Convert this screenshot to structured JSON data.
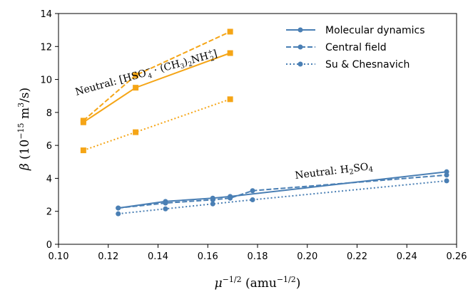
{
  "chart_data": {
    "type": "line",
    "xlabel": "μ^-1/2 (amu^-1/2)",
    "xlabel_parts": {
      "mu": "μ",
      "mu_exp": "−1/2",
      "unit_open": " (amu",
      "unit_exp": "−1/2",
      "unit_close": ")"
    },
    "ylabel": "β (10^-15 m³/s)",
    "ylabel_parts": {
      "beta": "β",
      "open": " (10",
      "exp": "−15",
      "rest": " m",
      "cube": "3",
      "close": "/s)"
    },
    "xlim": [
      0.1,
      0.26
    ],
    "ylim": [
      0,
      14
    ],
    "xticks": [
      "0.10",
      "0.12",
      "0.14",
      "0.16",
      "0.18",
      "0.20",
      "0.22",
      "0.24",
      "0.26"
    ],
    "yticks": [
      "0",
      "2",
      "4",
      "6",
      "8",
      "10",
      "12",
      "14"
    ],
    "grid": false,
    "legend_position": "top-right",
    "legend": [
      {
        "name": "Molecular dynamics",
        "dash": "solid"
      },
      {
        "name": "Central field",
        "dash": "dashed"
      },
      {
        "name": "Su & Chesnavich",
        "dash": "dotted"
      }
    ],
    "colors": {
      "h2so4": "#4a7fb4",
      "hso4": "#f5a516"
    },
    "annotations": {
      "h2so4": {
        "prefix": "Neutral: H",
        "sub1": "2",
        "mid": "SO",
        "sub2": "4"
      },
      "hso4": {
        "prefix": "Neutral: [HSO",
        "hso4_sub": "4",
        "hso4_sup": "−",
        "mid1": " · (CH",
        "ch3_sub": "3",
        "mid2": ")",
        "paren_sub": "2",
        "nh": "NH",
        "nh_sub": "2",
        "nh_sup": "+",
        "close": "]"
      }
    },
    "series": [
      {
        "group": "h2so4",
        "method": "Molecular dynamics",
        "style": "solid",
        "marker": "circle",
        "x": [
          0.124,
          0.143,
          0.162,
          0.169,
          0.256
        ],
        "y": [
          2.2,
          2.6,
          2.8,
          2.9,
          4.4
        ]
      },
      {
        "group": "h2so4",
        "method": "Central field",
        "style": "dashed",
        "marker": "circle",
        "x": [
          0.124,
          0.143,
          0.162,
          0.169,
          0.178,
          0.256
        ],
        "y": [
          2.2,
          2.5,
          2.7,
          2.8,
          3.25,
          4.2
        ]
      },
      {
        "group": "h2so4",
        "method": "Su & Chesnavich",
        "style": "dotted",
        "marker": "circle",
        "x": [
          0.124,
          0.143,
          0.162,
          0.178,
          0.256
        ],
        "y": [
          1.85,
          2.15,
          2.45,
          2.7,
          3.85
        ]
      },
      {
        "group": "hso4",
        "method": "Molecular dynamics",
        "style": "solid",
        "marker": "square",
        "x": [
          0.11,
          0.131,
          0.169
        ],
        "y": [
          7.4,
          9.5,
          11.6
        ]
      },
      {
        "group": "hso4",
        "method": "Central field",
        "style": "dashed",
        "marker": "square",
        "x": [
          0.11,
          0.131,
          0.169
        ],
        "y": [
          7.5,
          10.25,
          12.9
        ]
      },
      {
        "group": "hso4",
        "method": "Su & Chesnavich",
        "style": "dotted",
        "marker": "square",
        "x": [
          0.11,
          0.131,
          0.169
        ],
        "y": [
          5.7,
          6.8,
          8.8
        ]
      }
    ]
  }
}
